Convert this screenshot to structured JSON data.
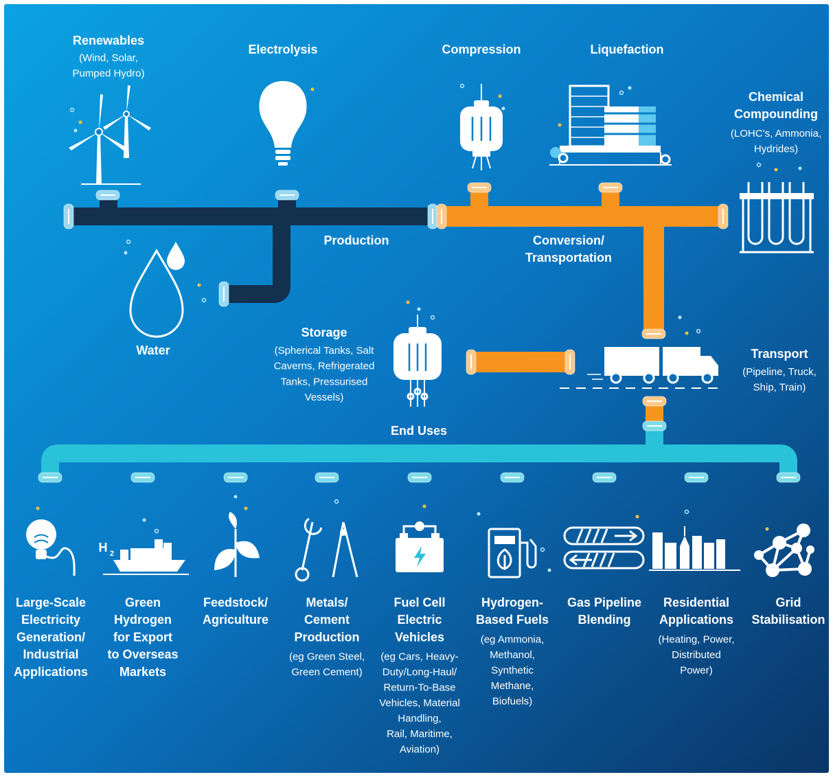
{
  "stages": [
    {
      "label": [
        "Production"
      ]
    },
    {
      "label": [
        "Conversion/",
        "Transportation"
      ]
    },
    {
      "label": [
        "End Uses"
      ]
    }
  ],
  "nodes": [
    {
      "title": [
        "Renewables"
      ],
      "detail": [
        "(Wind, Solar,",
        "Pumped Hydro)"
      ]
    },
    {
      "title": [
        "Electrolysis"
      ],
      "detail": []
    },
    {
      "title": [
        "Water"
      ],
      "detail": []
    },
    {
      "title": [
        "Compression"
      ],
      "detail": []
    },
    {
      "title": [
        "Liquefaction"
      ],
      "detail": []
    },
    {
      "title": [
        "Chemical",
        "Compounding"
      ],
      "detail": [
        "(LOHC’s, Ammonia,",
        "Hydrides)"
      ]
    },
    {
      "title": [
        "Storage"
      ],
      "detail": [
        "(Spherical Tanks, Salt",
        "Caverns, Refrigerated",
        "Tanks, Pressurised",
        "Vessels)"
      ]
    },
    {
      "title": [
        "Transport"
      ],
      "detail": [
        "(Pipeline, Truck,",
        "Ship, Train)"
      ]
    }
  ],
  "end_uses": [
    {
      "title": [
        "Large-Scale",
        "Electricity",
        "Generation/",
        "Industrial",
        "Applications"
      ],
      "detail": []
    },
    {
      "title": [
        "Green",
        "Hydrogen",
        "for Export",
        "to Overseas",
        "Markets"
      ],
      "detail": [],
      "icon_label": [
        "H",
        "2"
      ]
    },
    {
      "title": [
        "Feedstock/",
        "Agriculture"
      ],
      "detail": []
    },
    {
      "title": [
        "Metals/",
        "Cement",
        "Production"
      ],
      "detail": [
        "(eg Green Steel,",
        "Green Cement)"
      ]
    },
    {
      "title": [
        "Fuel Cell",
        "Electric",
        "Vehicles"
      ],
      "detail": [
        "(eg Cars, Heavy-",
        "Duty/Long-Haul/",
        "Return-To-Base",
        "Vehicles, Material",
        "Handling,",
        "Rail, Maritime,",
        "Aviation)"
      ]
    },
    {
      "title": [
        "Hydrogen-",
        "Based Fuels"
      ],
      "detail": [
        "(eg Ammonia,",
        "Methanol,",
        "Synthetic",
        "Methane,",
        "Biofuels)"
      ]
    },
    {
      "title": [
        "Gas Pipeline",
        "Blending"
      ],
      "detail": []
    },
    {
      "title": [
        "Residential",
        "Applications"
      ],
      "detail": [
        "(Heating, Power,",
        "Distributed",
        "Power)"
      ]
    },
    {
      "title": [
        "Grid",
        "Stabilisation"
      ],
      "detail": []
    }
  ]
}
